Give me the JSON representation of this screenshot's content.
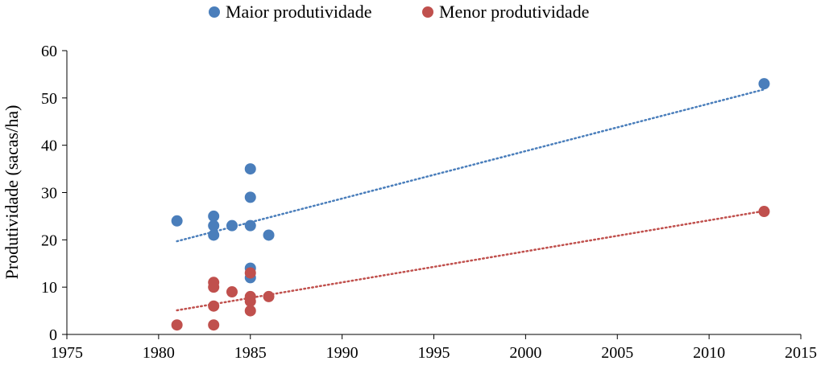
{
  "chart_data": {
    "type": "scatter",
    "title": "",
    "xlabel": "",
    "ylabel": "Produtividade (sacas/ha)",
    "xlim": [
      1975,
      2015
    ],
    "ylim": [
      0,
      60
    ],
    "xticks": [
      1975,
      1980,
      1985,
      1990,
      1995,
      2000,
      2005,
      2010,
      2015
    ],
    "yticks": [
      0,
      10,
      20,
      30,
      40,
      50,
      60
    ],
    "grid": false,
    "legend_position": "top",
    "series": [
      {
        "name": "Maior produtividade",
        "color": "#4a7ebb",
        "points": [
          {
            "x": 1981,
            "y": 24
          },
          {
            "x": 1983,
            "y": 25
          },
          {
            "x": 1983,
            "y": 23
          },
          {
            "x": 1983,
            "y": 21
          },
          {
            "x": 1984,
            "y": 23
          },
          {
            "x": 1985,
            "y": 35
          },
          {
            "x": 1985,
            "y": 29
          },
          {
            "x": 1985,
            "y": 23
          },
          {
            "x": 1985,
            "y": 14
          },
          {
            "x": 1985,
            "y": 12
          },
          {
            "x": 1986,
            "y": 21
          },
          {
            "x": 2013,
            "y": 53
          }
        ],
        "trendline": {
          "x": [
            1981,
            2013
          ],
          "y": [
            19.7,
            51.8
          ]
        }
      },
      {
        "name": "Menor produtividade",
        "color": "#c0504d",
        "points": [
          {
            "x": 1981,
            "y": 2
          },
          {
            "x": 1983,
            "y": 2
          },
          {
            "x": 1983,
            "y": 6
          },
          {
            "x": 1983,
            "y": 10
          },
          {
            "x": 1983,
            "y": 11
          },
          {
            "x": 1984,
            "y": 9
          },
          {
            "x": 1985,
            "y": 13
          },
          {
            "x": 1985,
            "y": 8
          },
          {
            "x": 1985,
            "y": 7
          },
          {
            "x": 1985,
            "y": 5
          },
          {
            "x": 1986,
            "y": 8
          },
          {
            "x": 2013,
            "y": 26
          }
        ],
        "trendline": {
          "x": [
            1981,
            2013
          ],
          "y": [
            5.1,
            26.1
          ]
        }
      }
    ]
  }
}
